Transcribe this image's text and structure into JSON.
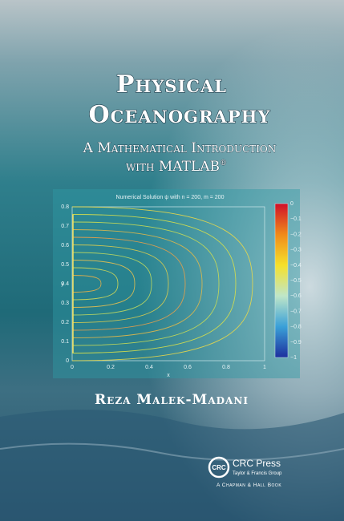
{
  "cover": {
    "title": [
      "Physical",
      "Oceanography"
    ],
    "subtitle": [
      "A Mathematical Introduction",
      "with MATLAB"
    ],
    "subtitle_mark": "®",
    "plot": {
      "title": "Numerical Solution ψ with n = 200, m = 200",
      "xlabel": "x",
      "ylabel": "y",
      "xticks": [
        "0",
        "0.2",
        "0.4",
        "0.6",
        "0.8",
        "1"
      ],
      "yticks": [
        "0",
        "0.1",
        "0.2",
        "0.3",
        "0.4",
        "0.5",
        "0.6",
        "0.7",
        "0.8"
      ],
      "colorbar_ticks": [
        "0",
        "−0.1",
        "−0.2",
        "−0.3",
        "−0.4",
        "−0.5",
        "−0.6",
        "−0.7",
        "−0.8",
        "−0.9",
        "−1"
      ]
    },
    "author": "Reza Malek-Madani",
    "publisher": {
      "name": "CRC Press",
      "group": "Taylor & Francis Group",
      "imprint": "A Chapman & Hall Book",
      "logo": "CRC"
    }
  }
}
